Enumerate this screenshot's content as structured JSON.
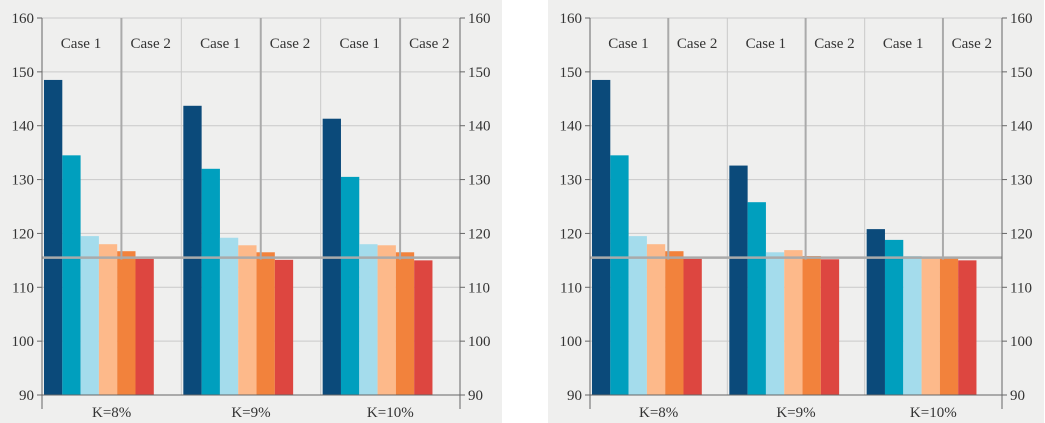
{
  "chart_data": [
    {
      "type": "bar",
      "ylim": [
        90,
        160
      ],
      "yticks": [
        90,
        100,
        110,
        120,
        130,
        140,
        150,
        160
      ],
      "groups": [
        "K=8%",
        "K=9%",
        "K=10%"
      ],
      "case_labels": [
        "Case 1",
        "Case 2"
      ],
      "reference_line": 115.5,
      "series_colors": [
        "#0b4a7a",
        "#009fbe",
        "#a4dcec",
        "#fdb98a",
        "#f2823c",
        "#dd4640"
      ],
      "values": [
        [
          148.5,
          134.5,
          119.5,
          118,
          116.7,
          115.3
        ],
        [
          143.7,
          132,
          119.2,
          117.8,
          116.5,
          115.1
        ],
        [
          141.3,
          130.5,
          118,
          117.8,
          116.5,
          115
        ]
      ]
    },
    {
      "type": "bar",
      "ylim": [
        90,
        160
      ],
      "yticks": [
        90,
        100,
        110,
        120,
        130,
        140,
        150,
        160
      ],
      "groups": [
        "K=8%",
        "K=9%",
        "K=10%"
      ],
      "case_labels": [
        "Case 1",
        "Case 2"
      ],
      "reference_line": 115.5,
      "series_colors": [
        "#0b4a7a",
        "#009fbe",
        "#a4dcec",
        "#fdb98a",
        "#f2823c",
        "#dd4640"
      ],
      "values": [
        [
          148.5,
          134.5,
          119.5,
          118,
          116.7,
          115.3
        ],
        [
          132.6,
          125.8,
          116.5,
          116.9,
          115.8,
          115.2
        ],
        [
          120.8,
          118.8,
          115.8,
          115.6,
          115.6,
          115
        ]
      ]
    }
  ]
}
